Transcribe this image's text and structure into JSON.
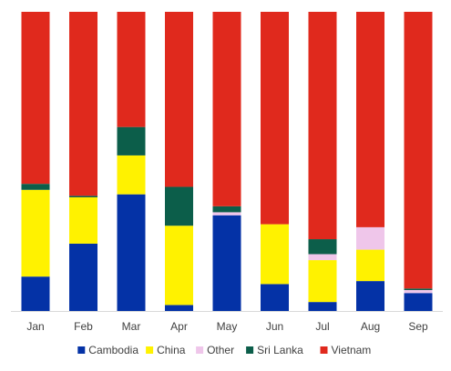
{
  "chart_data": {
    "type": "bar",
    "stacked": true,
    "normalized": true,
    "ylim": [
      0,
      1
    ],
    "categories": [
      "Jan",
      "Feb",
      "Mar",
      "Apr",
      "May",
      "Jun",
      "Jul",
      "Aug",
      "Sep"
    ],
    "series": [
      {
        "name": "Cambodia",
        "color": "#0432a6",
        "values": [
          0.115,
          0.225,
          0.39,
          0.02,
          0.32,
          0.09,
          0.03,
          0.1,
          0.06
        ]
      },
      {
        "name": "China",
        "color": "#fff200",
        "values": [
          0.29,
          0.155,
          0.13,
          0.265,
          0,
          0.2,
          0.14,
          0.105,
          0
        ]
      },
      {
        "name": "Other",
        "color": "#efc6ea",
        "values": [
          0,
          0,
          0,
          0,
          0.01,
          0,
          0.02,
          0.075,
          0.01
        ]
      },
      {
        "name": "Sri Lanka",
        "color": "#0c5e4a",
        "values": [
          0.02,
          0.005,
          0.095,
          0.13,
          0.02,
          0,
          0.05,
          0,
          0.005
        ]
      },
      {
        "name": "Vietnam",
        "color": "#e0291d",
        "values": [
          0.575,
          0.615,
          0.385,
          0.585,
          0.65,
          0.71,
          0.76,
          0.72,
          0.925
        ]
      }
    ],
    "legend_position": "bottom",
    "grid": false
  }
}
